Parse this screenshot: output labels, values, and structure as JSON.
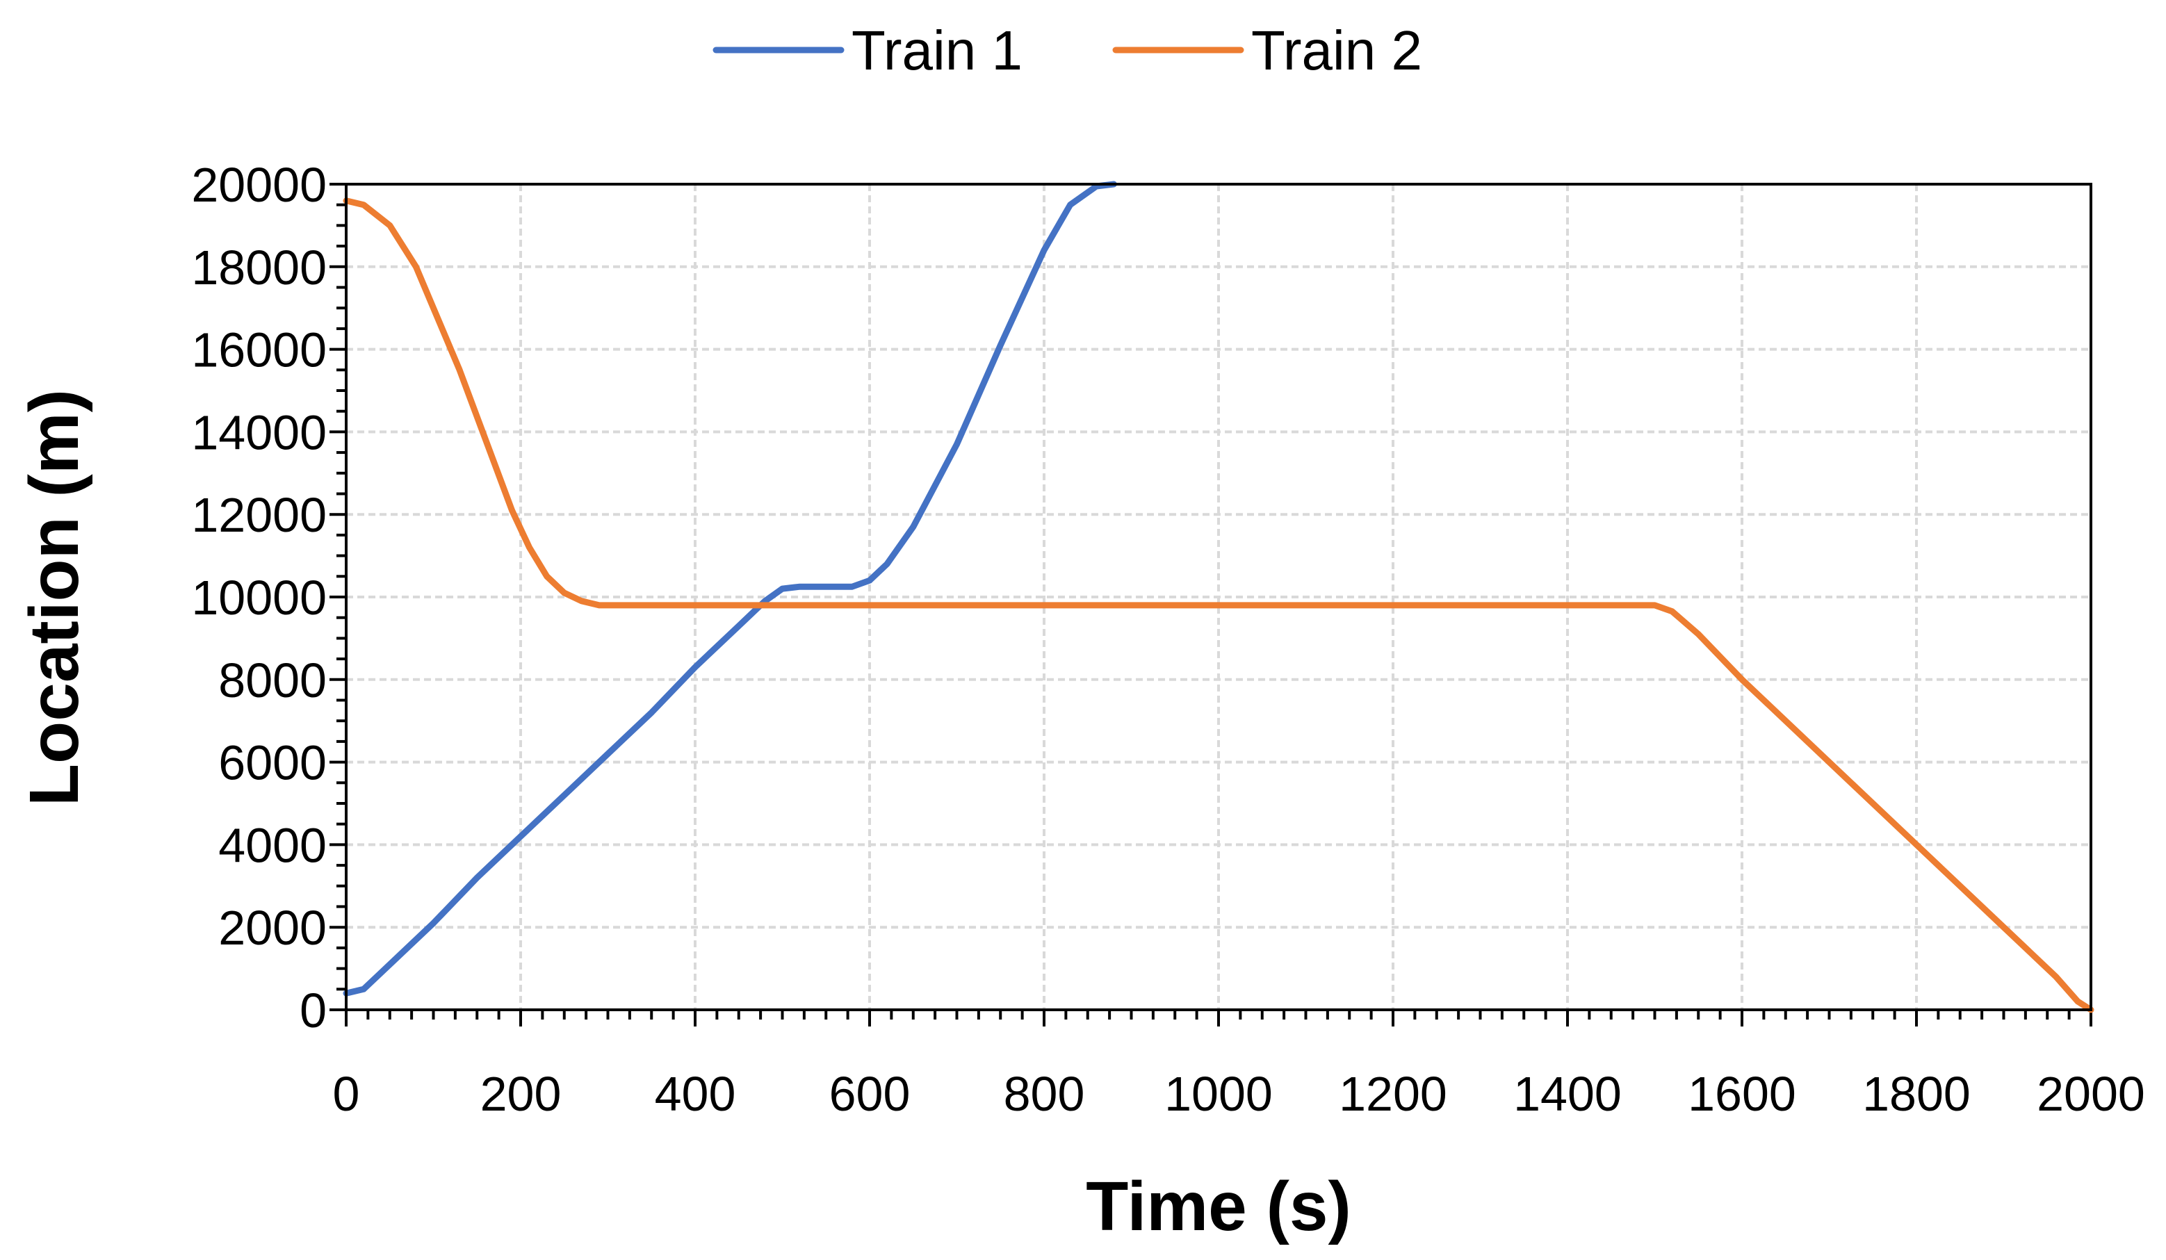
{
  "chart_data": {
    "type": "line",
    "xlabel": "Time (s)",
    "ylabel": "Location (m)",
    "xlim": [
      0,
      2000
    ],
    "ylim": [
      0,
      20000
    ],
    "x_ticks": [
      0,
      200,
      400,
      600,
      800,
      1000,
      1200,
      1400,
      1600,
      1800,
      2000
    ],
    "y_ticks": [
      0,
      2000,
      4000,
      6000,
      8000,
      10000,
      12000,
      14000,
      16000,
      18000,
      20000
    ],
    "x_tick_labels": [
      "0",
      "200",
      "400",
      "600",
      "800",
      "1000",
      "1200",
      "1400",
      "1600",
      "1800",
      "2000"
    ],
    "y_tick_labels": [
      "0",
      "2000",
      "4000",
      "6000",
      "8000",
      "10000",
      "12000",
      "14000",
      "16000",
      "18000",
      "20000"
    ],
    "grid": true,
    "legend_position": "top-center",
    "series": [
      {
        "name": "Train 1",
        "color": "#4472C4",
        "x": [
          0,
          20,
          50,
          100,
          150,
          200,
          250,
          300,
          350,
          400,
          450,
          480,
          500,
          520,
          580,
          600,
          620,
          650,
          700,
          750,
          800,
          830,
          860,
          880
        ],
        "y": [
          400,
          500,
          1100,
          2100,
          3200,
          4200,
          5200,
          6200,
          7200,
          8300,
          9300,
          9900,
          10200,
          10250,
          10250,
          10400,
          10800,
          11700,
          13700,
          16100,
          18400,
          19500,
          19950,
          20000
        ]
      },
      {
        "name": "Train 2",
        "color": "#ED7D31",
        "x": [
          0,
          20,
          50,
          80,
          100,
          130,
          160,
          190,
          210,
          230,
          250,
          270,
          290,
          300,
          400,
          600,
          800,
          1000,
          1200,
          1400,
          1500,
          1520,
          1550,
          1600,
          1700,
          1800,
          1900,
          1960,
          1985,
          2000
        ],
        "y": [
          19600,
          19500,
          19000,
          18000,
          17000,
          15500,
          13800,
          12100,
          11200,
          10500,
          10100,
          9900,
          9800,
          9800,
          9800,
          9800,
          9800,
          9800,
          9800,
          9800,
          9800,
          9650,
          9100,
          8000,
          6000,
          4000,
          2000,
          800,
          200,
          0
        ]
      }
    ]
  }
}
